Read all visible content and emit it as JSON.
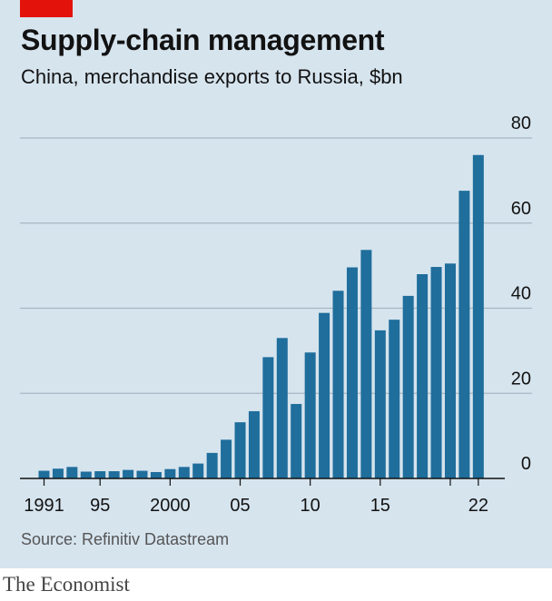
{
  "brand_color": "#e3120b",
  "title": "Supply-chain management",
  "subtitle": "China, merchandise exports to Russia, $bn",
  "source": "Source: Refinitiv Datastream",
  "publisher": "The Economist",
  "chart_data": {
    "type": "bar",
    "title": "Supply-chain management",
    "subtitle": "China, merchandise exports to Russia, $bn",
    "xlabel": "",
    "ylabel": "",
    "ylim": [
      0,
      80
    ],
    "y_ticks": [
      0,
      20,
      40,
      60,
      80
    ],
    "y_axis_side": "right",
    "grid": true,
    "bar_color": "#1f6e9c",
    "categories": [
      "1991",
      "1992",
      "1993",
      "1994",
      "1995",
      "1996",
      "1997",
      "1998",
      "1999",
      "2000",
      "2001",
      "2002",
      "2003",
      "2004",
      "2005",
      "2006",
      "2007",
      "2008",
      "2009",
      "2010",
      "2011",
      "2012",
      "2013",
      "2014",
      "2015",
      "2016",
      "2017",
      "2018",
      "2019",
      "2020",
      "2021",
      "2022"
    ],
    "x_tick_labels": [
      {
        "year": "1991",
        "label": "1991"
      },
      {
        "year": "1995",
        "label": "95"
      },
      {
        "year": "2000",
        "label": "2000"
      },
      {
        "year": "2005",
        "label": "05"
      },
      {
        "year": "2010",
        "label": "10"
      },
      {
        "year": "2015",
        "label": "15"
      },
      {
        "year": "2020",
        "label": ""
      },
      {
        "year": "2022",
        "label": "22"
      }
    ],
    "values": [
      1.8,
      2.3,
      2.7,
      1.6,
      1.7,
      1.7,
      2.0,
      1.8,
      1.5,
      2.2,
      2.7,
      3.5,
      6.0,
      9.1,
      13.2,
      15.8,
      28.5,
      33.0,
      17.5,
      29.6,
      38.9,
      44.1,
      49.6,
      53.7,
      34.8,
      37.3,
      42.9,
      48.0,
      49.7,
      50.5,
      67.6,
      76.0
    ]
  }
}
